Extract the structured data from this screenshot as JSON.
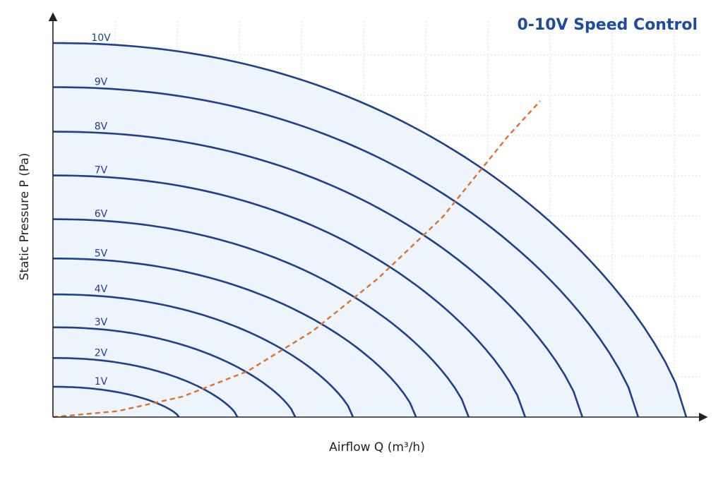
{
  "colors": {
    "curve": "#1f3f8f",
    "fill": "#eef4fc",
    "system_curve": "#e0702a",
    "axis": "#222222",
    "grid": "#d9d9d9",
    "title": "#1f4aa3"
  },
  "chart_data": {
    "type": "line",
    "title": "0-10V Speed Control",
    "xlabel": "Airflow Q (m³/h)",
    "ylabel": "Static Pressure P (Pa)",
    "grid": true,
    "xlim": [
      0,
      100
    ],
    "ylim": [
      0,
      100
    ],
    "series": [
      {
        "name": "1V",
        "max_pressure": 8.1,
        "max_airflow": 19.4
      },
      {
        "name": "2V",
        "max_pressure": 15.8,
        "max_airflow": 28.4
      },
      {
        "name": "3V",
        "max_pressure": 24.0,
        "max_airflow": 37.3
      },
      {
        "name": "4V",
        "max_pressure": 32.8,
        "max_airflow": 46.2
      },
      {
        "name": "5V",
        "max_pressure": 42.4,
        "max_airflow": 55.9
      },
      {
        "name": "6V",
        "max_pressure": 52.9,
        "max_airflow": 64.0
      },
      {
        "name": "7V",
        "max_pressure": 64.6,
        "max_airflow": 72.7
      },
      {
        "name": "8V",
        "max_pressure": 76.3,
        "max_airflow": 81.5
      },
      {
        "name": "9V",
        "max_pressure": 88.2,
        "max_airflow": 90.1
      },
      {
        "name": "10V",
        "max_pressure": 100,
        "max_airflow": 97.5
      }
    ],
    "system_curve": {
      "x": [
        0,
        10,
        20,
        30,
        40,
        50,
        60,
        70,
        75
      ],
      "y": [
        0,
        1.6,
        5.5,
        12.3,
        23.0,
        37.0,
        53.5,
        75.0,
        84.5
      ]
    }
  }
}
